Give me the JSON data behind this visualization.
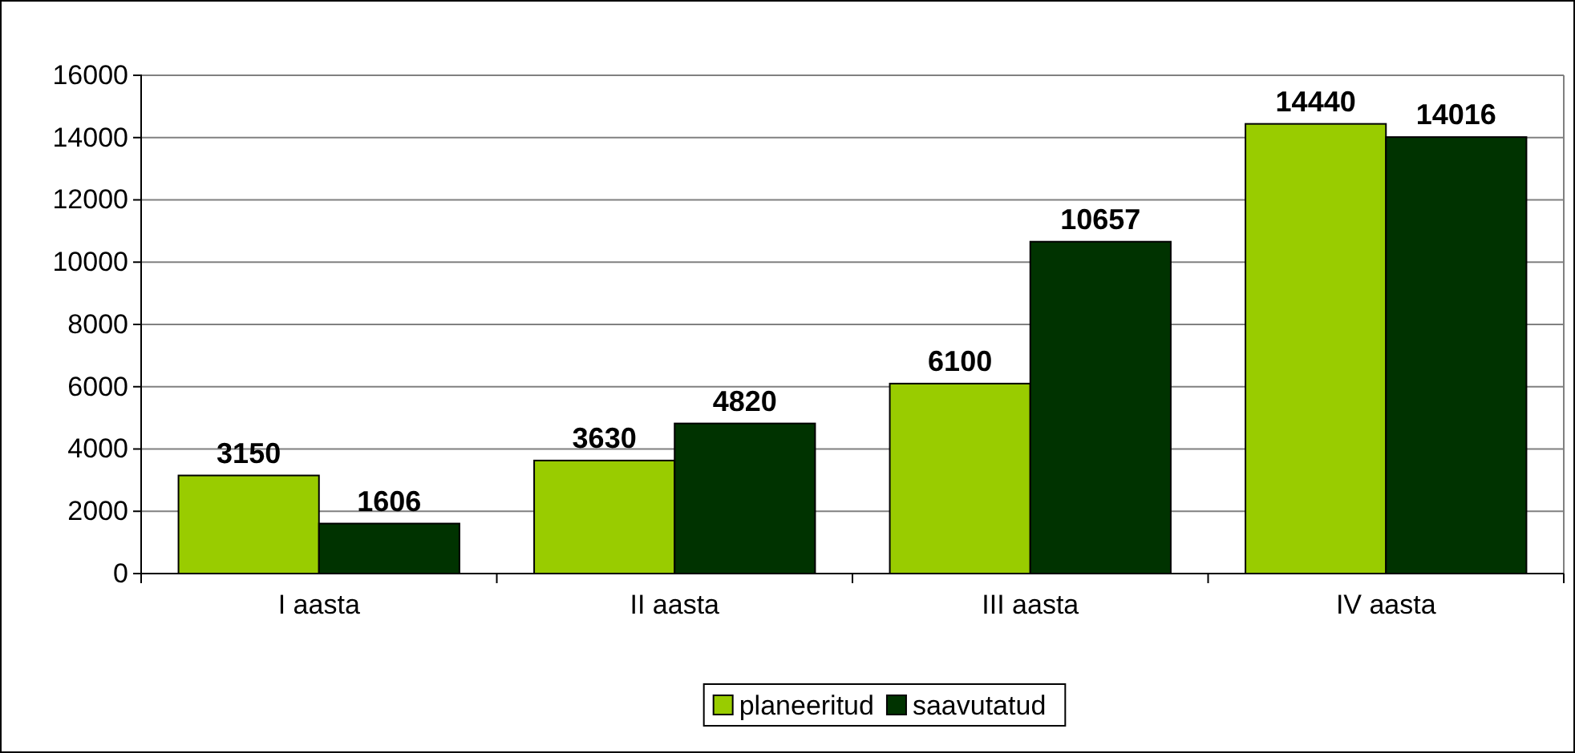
{
  "chart_data": {
    "type": "bar",
    "categories": [
      "I aasta",
      "II aasta",
      "III aasta",
      "IV aasta"
    ],
    "series": [
      {
        "name": "planeeritud",
        "color": "#99cc00",
        "values": [
          3150,
          3630,
          6100,
          14440
        ]
      },
      {
        "name": "saavutatud",
        "color": "#003300",
        "values": [
          1606,
          4820,
          10657,
          14016
        ]
      }
    ],
    "ylim": [
      0,
      16000
    ],
    "yticks": [
      0,
      2000,
      4000,
      6000,
      8000,
      10000,
      12000,
      14000,
      16000
    ],
    "grid": "y",
    "legend": "bottom",
    "data_labels": true
  }
}
